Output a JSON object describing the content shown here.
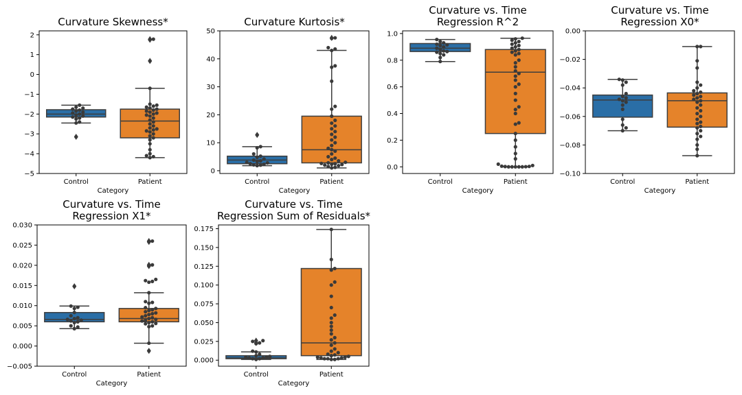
{
  "colors": {
    "control": "#2a6ea6",
    "patient": "#e5832a",
    "line": "#3d3d3d",
    "point": "#3a3a3a"
  },
  "chart_data": [
    {
      "type": "box",
      "title": [
        "Curvature Skewness*"
      ],
      "xlabel": "Category",
      "categories": [
        "Control",
        "Patient"
      ],
      "ylim": [
        -5,
        2.2
      ],
      "yticks": [
        -5,
        -4,
        -3,
        -2,
        -1,
        0,
        1,
        2
      ],
      "yticklabels": [
        "−5",
        "−4",
        "−3",
        "−2",
        "−1",
        "0",
        "1",
        "2"
      ],
      "boxes": [
        {
          "q1": -2.15,
          "median": -2.0,
          "q3": -1.78,
          "whislo": -2.45,
          "whishi": -1.55,
          "fliers": [
            -3.15
          ]
        },
        {
          "q1": -3.2,
          "median": -2.35,
          "q3": -1.75,
          "whislo": -4.2,
          "whishi": -0.7,
          "fliers": [
            1.75,
            1.78,
            0.68
          ]
        }
      ],
      "points": [
        [
          -1.7,
          -1.75,
          -1.8,
          -1.85,
          -1.9,
          -1.95,
          -2.0,
          -2.05,
          -2.1,
          -2.15,
          -2.2,
          -2.25,
          -2.4,
          -2.45,
          -1.55,
          -1.65,
          -3.15
        ],
        [
          1.78,
          1.75,
          0.68,
          -0.7,
          -1.5,
          -1.55,
          -1.6,
          -1.65,
          -1.7,
          -1.75,
          -1.8,
          -1.85,
          -1.9,
          -1.95,
          -2.0,
          -2.05,
          -2.1,
          -2.2,
          -2.3,
          -2.4,
          -2.5,
          -2.6,
          -2.7,
          -2.75,
          -2.8,
          -2.85,
          -2.9,
          -3.0,
          -3.1,
          -3.2,
          -3.3,
          -3.5,
          -3.8,
          -4.0,
          -4.1,
          -4.15,
          -4.2
        ]
      ]
    },
    {
      "type": "box",
      "title": [
        "Curvature Kurtosis*"
      ],
      "xlabel": "Category",
      "categories": [
        "Control",
        "Patient"
      ],
      "ylim": [
        -1,
        50
      ],
      "yticks": [
        0,
        10,
        20,
        30,
        40,
        50
      ],
      "yticklabels": [
        "0",
        "10",
        "20",
        "30",
        "40",
        "50"
      ],
      "boxes": [
        {
          "q1": 2.5,
          "median": 3.8,
          "q3": 5.2,
          "whislo": 1.8,
          "whishi": 8.6,
          "fliers": [
            12.8
          ]
        },
        {
          "q1": 2.8,
          "median": 7.5,
          "q3": 19.5,
          "whislo": 1.0,
          "whishi": 43.0,
          "fliers": [
            47.5
          ]
        }
      ],
      "points": [
        [
          1.8,
          2.0,
          2.1,
          2.3,
          2.5,
          2.8,
          3.0,
          3.3,
          3.5,
          3.8,
          4.2,
          4.8,
          5.2,
          6.0,
          8.2,
          8.6,
          12.8
        ],
        [
          47.5,
          47.3,
          44.0,
          43.5,
          43.0,
          37.5,
          37.0,
          32.0,
          23.0,
          22.0,
          19.5,
          18.0,
          17.0,
          16.0,
          15.0,
          14.0,
          13.0,
          12.0,
          11.0,
          10.0,
          9.0,
          8.0,
          7.5,
          7.0,
          6.0,
          5.0,
          4.5,
          4.0,
          3.5,
          3.0,
          2.8,
          2.6,
          2.5,
          2.3,
          2.2,
          2.0,
          1.8,
          1.5,
          1.2,
          1.0
        ]
      ]
    },
    {
      "type": "box",
      "title": [
        "Curvature vs. Time",
        "Regression R^2"
      ],
      "xlabel": "Category",
      "categories": [
        "Control",
        "Patient"
      ],
      "ylim": [
        -0.05,
        1.02
      ],
      "yticks": [
        0,
        0.2,
        0.4,
        0.6,
        0.8,
        1.0
      ],
      "yticklabels": [
        "0.0",
        "0.2",
        "0.4",
        "0.6",
        "0.8",
        "1.0"
      ],
      "boxes": [
        {
          "q1": 0.865,
          "median": 0.89,
          "q3": 0.925,
          "whislo": 0.79,
          "whishi": 0.955,
          "fliers": []
        },
        {
          "q1": 0.25,
          "median": 0.71,
          "q3": 0.88,
          "whislo": 0.0,
          "whishi": 0.965,
          "fliers": []
        }
      ],
      "points": [
        [
          0.955,
          0.94,
          0.93,
          0.92,
          0.915,
          0.91,
          0.9,
          0.89,
          0.88,
          0.87,
          0.865,
          0.86,
          0.85,
          0.84,
          0.82,
          0.79
        ],
        [
          0.965,
          0.96,
          0.95,
          0.94,
          0.93,
          0.92,
          0.91,
          0.9,
          0.89,
          0.88,
          0.87,
          0.86,
          0.85,
          0.84,
          0.8,
          0.78,
          0.75,
          0.72,
          0.7,
          0.68,
          0.65,
          0.62,
          0.6,
          0.55,
          0.5,
          0.45,
          0.43,
          0.4,
          0.33,
          0.32,
          0.25,
          0.2,
          0.15,
          0.1,
          0.06,
          0.02,
          0.01,
          0.005,
          0.003,
          0.002,
          0.001,
          0.0,
          0.0,
          0.0,
          0.0,
          0.0
        ]
      ]
    },
    {
      "type": "box",
      "title": [
        "Curvature vs. Time",
        "Regression X0*"
      ],
      "xlabel": "Category",
      "categories": [
        "Control",
        "Patient"
      ],
      "ylim": [
        -0.1,
        0
      ],
      "yticks": [
        -0.1,
        -0.08,
        -0.06,
        -0.04,
        -0.02,
        0
      ],
      "yticklabels": [
        "−0.10",
        "−0.08",
        "−0.06",
        "−0.04",
        "−0.02",
        "0.00"
      ],
      "boxes": [
        {
          "q1": -0.0605,
          "median": -0.0485,
          "q3": -0.045,
          "whislo": -0.07,
          "whishi": -0.034,
          "fliers": []
        },
        {
          "q1": -0.0675,
          "median": -0.049,
          "q3": -0.0435,
          "whislo": -0.0875,
          "whishi": -0.011,
          "fliers": []
        }
      ],
      "points": [
        [
          -0.034,
          -0.0345,
          -0.036,
          -0.038,
          -0.044,
          -0.046,
          -0.047,
          -0.048,
          -0.049,
          -0.05,
          -0.052,
          -0.055,
          -0.062,
          -0.066,
          -0.068,
          -0.07
        ],
        [
          -0.011,
          -0.011,
          -0.021,
          -0.026,
          -0.036,
          -0.038,
          -0.04,
          -0.042,
          -0.043,
          -0.044,
          -0.045,
          -0.046,
          -0.047,
          -0.048,
          -0.049,
          -0.05,
          -0.052,
          -0.054,
          -0.056,
          -0.058,
          -0.06,
          -0.062,
          -0.064,
          -0.065,
          -0.067,
          -0.068,
          -0.07,
          -0.072,
          -0.074,
          -0.076,
          -0.08,
          -0.083,
          -0.0875
        ]
      ]
    },
    {
      "type": "box",
      "title": [
        "Curvature vs. Time",
        "Regression X1*"
      ],
      "xlabel": "Category",
      "categories": [
        "Control",
        "Patient"
      ],
      "ylim": [
        -0.005,
        0.03
      ],
      "yticks": [
        -0.005,
        0,
        0.005,
        0.01,
        0.015,
        0.02,
        0.025,
        0.03
      ],
      "yticklabels": [
        "−0.005",
        "0.000",
        "0.005",
        "0.010",
        "0.015",
        "0.020",
        "0.025",
        "0.030"
      ],
      "boxes": [
        {
          "q1": 0.006,
          "median": 0.0066,
          "q3": 0.0083,
          "whislo": 0.0043,
          "whishi": 0.0099,
          "fliers": [
            0.0148
          ]
        },
        {
          "q1": 0.006,
          "median": 0.0068,
          "q3": 0.0093,
          "whislo": 0.0007,
          "whishi": 0.0132,
          "fliers": [
            0.0258,
            0.026,
            0.0198,
            0.0201,
            -0.0012
          ]
        }
      ],
      "points": [
        [
          0.0148,
          0.0099,
          0.0096,
          0.0093,
          0.0083,
          0.0075,
          0.007,
          0.0068,
          0.0066,
          0.0064,
          0.0062,
          0.006,
          0.0058,
          0.005,
          0.0047,
          0.0043
        ],
        [
          0.026,
          0.0258,
          0.0201,
          0.0198,
          0.0165,
          0.0162,
          0.016,
          0.0158,
          0.0132,
          0.011,
          0.0108,
          0.0106,
          0.0095,
          0.0093,
          0.009,
          0.0088,
          0.0085,
          0.0082,
          0.008,
          0.0078,
          0.0075,
          0.0072,
          0.007,
          0.0068,
          0.0066,
          0.0064,
          0.0062,
          0.006,
          0.0058,
          0.0056,
          0.0055,
          0.005,
          0.0048,
          0.0007,
          -0.0012
        ]
      ]
    },
    {
      "type": "box",
      "title": [
        "Curvature vs. Time",
        "Regression Sum of Residuals*"
      ],
      "xlabel": "Category",
      "categories": [
        "Control",
        "Patient"
      ],
      "ylim": [
        -0.008,
        0.18
      ],
      "yticks": [
        0,
        0.025,
        0.05,
        0.075,
        0.1,
        0.125,
        0.15,
        0.175
      ],
      "yticklabels": [
        "0.000",
        "0.025",
        "0.050",
        "0.075",
        "0.100",
        "0.125",
        "0.150",
        "0.175"
      ],
      "boxes": [
        {
          "q1": 0.002,
          "median": 0.003,
          "q3": 0.006,
          "whislo": 0.001,
          "whishi": 0.011,
          "fliers": [
            0.023,
            0.026
          ]
        },
        {
          "q1": 0.006,
          "median": 0.023,
          "q3": 0.122,
          "whislo": 0.001,
          "whishi": 0.174,
          "fliers": []
        }
      ],
      "points": [
        [
          0.026,
          0.025,
          0.023,
          0.022,
          0.012,
          0.011,
          0.008,
          0.006,
          0.005,
          0.004,
          0.004,
          0.003,
          0.003,
          0.002,
          0.002,
          0.001
        ],
        [
          0.174,
          0.134,
          0.122,
          0.12,
          0.104,
          0.1,
          0.085,
          0.07,
          0.06,
          0.056,
          0.05,
          0.045,
          0.04,
          0.035,
          0.03,
          0.027,
          0.023,
          0.02,
          0.015,
          0.012,
          0.01,
          0.008,
          0.007,
          0.006,
          0.005,
          0.004,
          0.004,
          0.003,
          0.003,
          0.002,
          0.002,
          0.002,
          0.001,
          0.001
        ]
      ]
    }
  ]
}
